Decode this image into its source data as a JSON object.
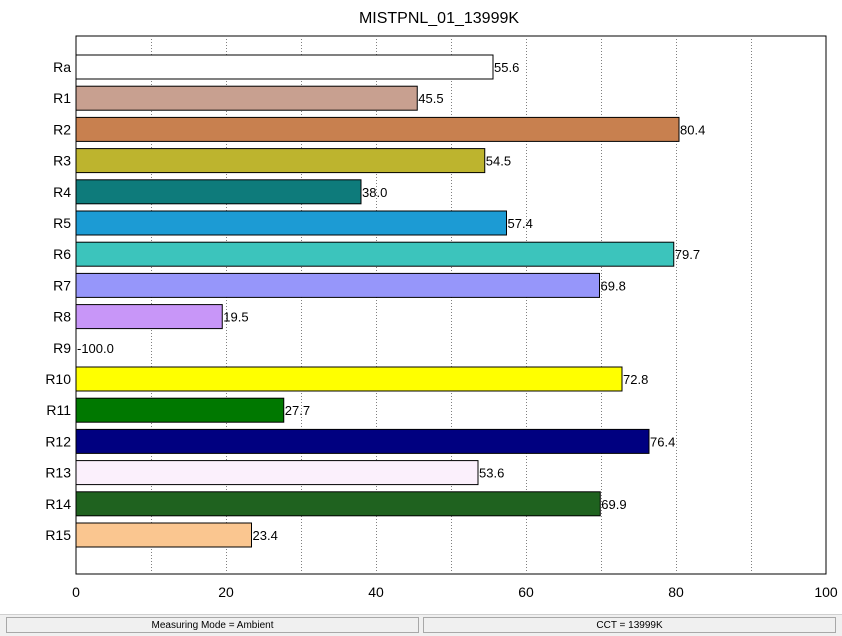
{
  "chart_data": {
    "type": "bar",
    "orientation": "horizontal",
    "title": "MISTPNL_01_13999K",
    "xlabel": "",
    "ylabel": "",
    "xlim": [
      0,
      100
    ],
    "x_ticks": [
      "0",
      "20",
      "40",
      "60",
      "80",
      "100"
    ],
    "grid": true,
    "categories": [
      "Ra",
      "R1",
      "R2",
      "R3",
      "R4",
      "R5",
      "R6",
      "R7",
      "R8",
      "R9",
      "R10",
      "R11",
      "R12",
      "R13",
      "R14",
      "R15"
    ],
    "values": [
      55.6,
      45.5,
      80.4,
      54.5,
      38.0,
      57.4,
      79.7,
      69.8,
      19.5,
      -100.0,
      72.8,
      27.7,
      76.4,
      53.6,
      69.9,
      23.4
    ],
    "value_labels": [
      "55.6",
      "45.5",
      "80.4",
      "54.5",
      "38.0",
      "57.4",
      "79.7",
      "69.8",
      "19.5",
      "-100.0",
      "72.8",
      "27.7",
      "76.4",
      "53.6",
      "69.9",
      "23.4"
    ],
    "colors": [
      "#ffffff",
      "#c8a090",
      "#c8804f",
      "#bdb42e",
      "#0e7b7b",
      "#1c9bd4",
      "#3cc4bc",
      "#9696fa",
      "#c896f8",
      "#808080",
      "#ffff00",
      "#007800",
      "#000080",
      "#fbf0fc",
      "#1f621f",
      "#fac690"
    ]
  },
  "status_bar": {
    "measuring_mode": "Measuring Mode = Ambient",
    "cct": "CCT = 13999K"
  }
}
